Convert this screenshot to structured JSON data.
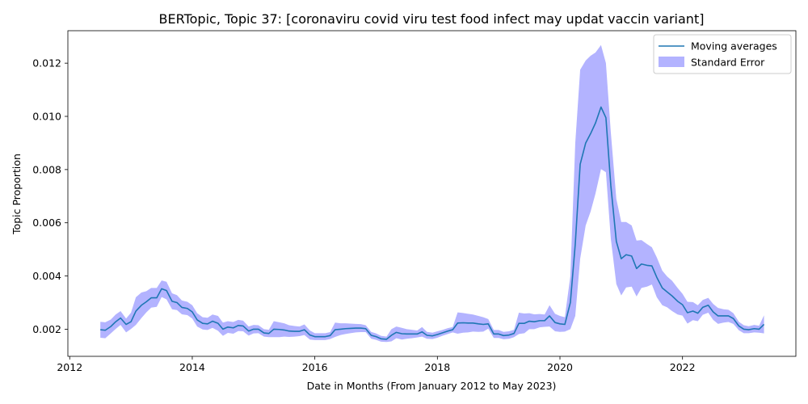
{
  "chart_data": {
    "type": "line",
    "title": "BERTopic, Topic 37: [coronaviru covid viru test food infect may updat vaccin variant]",
    "xlabel": "Date in Months (From January 2012 to May 2023)",
    "ylabel": "Topic Proportion",
    "xlim": [
      2011.97,
      2023.85
    ],
    "ylim": [
      0.00098,
      0.01322
    ],
    "xticks": [
      2012,
      2014,
      2016,
      2018,
      2020,
      2022
    ],
    "xtick_labels": [
      "2012",
      "2014",
      "2016",
      "2018",
      "2020",
      "2022"
    ],
    "yticks": [
      0.002,
      0.004,
      0.006,
      0.008,
      0.01,
      0.012
    ],
    "ytick_labels": [
      "0.002",
      "0.004",
      "0.006",
      "0.008",
      "0.010",
      "0.012"
    ],
    "legend": {
      "position": "top-right",
      "entries": [
        {
          "label": "Moving averages",
          "kind": "line",
          "color": "#1f77b4"
        },
        {
          "label": "Standard Error",
          "kind": "patch",
          "color": "#b3b3ff"
        }
      ]
    },
    "series": [
      {
        "name": "Moving averages",
        "color": "#1f77b4",
        "x": [
          2012.5,
          2012.58,
          2012.67,
          2012.75,
          2012.83,
          2012.92,
          2013.0,
          2013.08,
          2013.17,
          2013.25,
          2013.33,
          2013.42,
          2013.5,
          2013.58,
          2013.67,
          2013.75,
          2013.83,
          2013.92,
          2014.0,
          2014.08,
          2014.17,
          2014.25,
          2014.33,
          2014.42,
          2014.5,
          2014.58,
          2014.67,
          2014.75,
          2014.83,
          2014.92,
          2015.0,
          2015.08,
          2015.17,
          2015.25,
          2015.33,
          2015.42,
          2015.5,
          2015.58,
          2015.67,
          2015.75,
          2015.83,
          2015.92,
          2016.0,
          2016.08,
          2016.17,
          2016.25,
          2016.33,
          2016.42,
          2016.5,
          2016.58,
          2016.67,
          2016.75,
          2016.83,
          2016.92,
          2017.0,
          2017.08,
          2017.17,
          2017.25,
          2017.33,
          2017.42,
          2017.5,
          2017.58,
          2017.67,
          2017.75,
          2017.83,
          2017.92,
          2018.0,
          2018.08,
          2018.17,
          2018.25,
          2018.33,
          2018.42,
          2018.5,
          2018.58,
          2018.67,
          2018.75,
          2018.83,
          2018.92,
          2019.0,
          2019.08,
          2019.17,
          2019.25,
          2019.33,
          2019.42,
          2019.5,
          2019.58,
          2019.67,
          2019.75,
          2019.83,
          2019.92,
          2020.0,
          2020.08,
          2020.17,
          2020.25,
          2020.33,
          2020.42,
          2020.5,
          2020.58,
          2020.67,
          2020.75,
          2020.83,
          2020.92,
          2021.0,
          2021.08,
          2021.17,
          2021.25,
          2021.33,
          2021.42,
          2021.5,
          2021.58,
          2021.67,
          2021.75,
          2021.83,
          2021.92,
          2022.0,
          2022.08,
          2022.17,
          2022.25,
          2022.33,
          2022.42,
          2022.5,
          2022.58,
          2022.67,
          2022.75,
          2022.83,
          2022.92,
          2023.0,
          2023.08,
          2023.17,
          2023.25,
          2023.33
        ],
        "y": [
          0.00198,
          0.00196,
          0.0021,
          0.00228,
          0.00242,
          0.00218,
          0.00228,
          0.00268,
          0.0029,
          0.00303,
          0.00318,
          0.00318,
          0.00352,
          0.00345,
          0.00305,
          0.003,
          0.00282,
          0.00278,
          0.00265,
          0.00235,
          0.00222,
          0.0022,
          0.0023,
          0.00222,
          0.002,
          0.00208,
          0.00205,
          0.00214,
          0.00212,
          0.00193,
          0.002,
          0.002,
          0.00186,
          0.00184,
          0.002,
          0.00199,
          0.00197,
          0.00193,
          0.00192,
          0.00192,
          0.00198,
          0.00178,
          0.00172,
          0.00172,
          0.00172,
          0.00176,
          0.00198,
          0.002,
          0.00202,
          0.00203,
          0.00204,
          0.00204,
          0.00202,
          0.00177,
          0.00172,
          0.00164,
          0.00162,
          0.00177,
          0.00188,
          0.00183,
          0.00182,
          0.00182,
          0.00182,
          0.0019,
          0.00177,
          0.00175,
          0.0018,
          0.00186,
          0.00193,
          0.00198,
          0.00223,
          0.00224,
          0.00223,
          0.00223,
          0.0022,
          0.00218,
          0.0022,
          0.00182,
          0.00182,
          0.00176,
          0.00178,
          0.00184,
          0.00222,
          0.00222,
          0.0023,
          0.00228,
          0.00232,
          0.00232,
          0.0025,
          0.00225,
          0.0022,
          0.00218,
          0.003,
          0.0052,
          0.0082,
          0.009,
          0.00935,
          0.00975,
          0.01035,
          0.00995,
          0.0074,
          0.0053,
          0.00465,
          0.0048,
          0.00475,
          0.00428,
          0.00445,
          0.0044,
          0.00438,
          0.00395,
          0.00355,
          0.0034,
          0.00325,
          0.00305,
          0.00292,
          0.00262,
          0.00268,
          0.0026,
          0.00282,
          0.0029,
          0.00265,
          0.0025,
          0.0025,
          0.0025,
          0.0024,
          0.00212,
          0.002,
          0.00198,
          0.00202,
          0.002,
          0.00218
        ]
      }
    ],
    "error_band": {
      "name": "Standard Error",
      "color": "#b3b3ff",
      "upper": [
        0.00228,
        0.00226,
        0.00236,
        0.00255,
        0.00268,
        0.0024,
        0.00262,
        0.0032,
        0.00338,
        0.00343,
        0.00355,
        0.00355,
        0.00383,
        0.00378,
        0.00335,
        0.00328,
        0.00308,
        0.00303,
        0.0029,
        0.0026,
        0.00245,
        0.00243,
        0.00255,
        0.0025,
        0.00225,
        0.0023,
        0.00227,
        0.00235,
        0.00232,
        0.0021,
        0.00216,
        0.00215,
        0.002,
        0.00198,
        0.0023,
        0.00226,
        0.00222,
        0.00215,
        0.00212,
        0.0021,
        0.00218,
        0.00195,
        0.00185,
        0.00185,
        0.00185,
        0.00189,
        0.00225,
        0.00222,
        0.00222,
        0.00221,
        0.0022,
        0.00219,
        0.00215,
        0.0019,
        0.00184,
        0.00175,
        0.00172,
        0.002,
        0.0021,
        0.00205,
        0.002,
        0.00198,
        0.00195,
        0.00208,
        0.0019,
        0.00187,
        0.00192,
        0.00197,
        0.00204,
        0.00208,
        0.00263,
        0.00261,
        0.00258,
        0.00255,
        0.0025,
        0.00245,
        0.00238,
        0.00197,
        0.00197,
        0.0019,
        0.00192,
        0.00198,
        0.00262,
        0.00259,
        0.0026,
        0.00256,
        0.00257,
        0.00255,
        0.0029,
        0.00258,
        0.0025,
        0.00245,
        0.004,
        0.009,
        0.01175,
        0.0121,
        0.01228,
        0.0124,
        0.01268,
        0.012,
        0.0094,
        0.0069,
        0.00603,
        0.00603,
        0.0059,
        0.00533,
        0.00535,
        0.0052,
        0.00508,
        0.0047,
        0.0042,
        0.00398,
        0.00382,
        0.00355,
        0.00333,
        0.00303,
        0.00302,
        0.0029,
        0.0031,
        0.00318,
        0.00295,
        0.0028,
        0.00275,
        0.00273,
        0.0026,
        0.00228,
        0.00215,
        0.00211,
        0.00216,
        0.00213,
        0.00252
      ],
      "lower": [
        0.00168,
        0.00166,
        0.00184,
        0.00201,
        0.00216,
        0.00188,
        0.00201,
        0.00216,
        0.00242,
        0.00263,
        0.00281,
        0.00284,
        0.00321,
        0.00312,
        0.00275,
        0.00272,
        0.00256,
        0.00253,
        0.0024,
        0.0021,
        0.00199,
        0.00197,
        0.00205,
        0.00194,
        0.00175,
        0.00186,
        0.00183,
        0.00193,
        0.00192,
        0.00176,
        0.00184,
        0.00185,
        0.00172,
        0.0017,
        0.0017,
        0.0017,
        0.00172,
        0.00171,
        0.00172,
        0.00174,
        0.00178,
        0.00161,
        0.00159,
        0.00159,
        0.00159,
        0.00163,
        0.00171,
        0.00178,
        0.00182,
        0.00185,
        0.00188,
        0.00189,
        0.00189,
        0.00164,
        0.0016,
        0.00153,
        0.00152,
        0.00154,
        0.00166,
        0.00161,
        0.00164,
        0.00166,
        0.00169,
        0.00172,
        0.00164,
        0.00163,
        0.00168,
        0.00175,
        0.00182,
        0.00188,
        0.00183,
        0.00187,
        0.00188,
        0.00191,
        0.0019,
        0.00191,
        0.00202,
        0.00167,
        0.00167,
        0.00162,
        0.00164,
        0.0017,
        0.00182,
        0.00185,
        0.002,
        0.002,
        0.00207,
        0.00209,
        0.0021,
        0.00192,
        0.0019,
        0.00191,
        0.002,
        0.0025,
        0.00465,
        0.0059,
        0.00642,
        0.0071,
        0.00802,
        0.0079,
        0.0054,
        0.0037,
        0.00327,
        0.00357,
        0.0036,
        0.00323,
        0.00355,
        0.0036,
        0.00368,
        0.0032,
        0.0029,
        0.00282,
        0.00268,
        0.00255,
        0.00251,
        0.00221,
        0.00234,
        0.0023,
        0.00254,
        0.00262,
        0.00235,
        0.0022,
        0.00225,
        0.00227,
        0.0022,
        0.00196,
        0.00185,
        0.00185,
        0.00188,
        0.00187,
        0.00184
      ]
    }
  }
}
